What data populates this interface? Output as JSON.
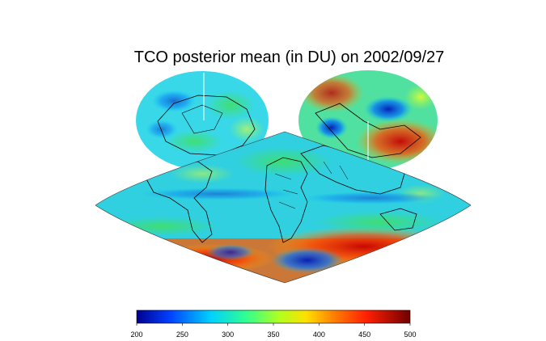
{
  "title": "TCO posterior mean (in DU) on 2002/09/27",
  "colorbar": {
    "min": 200,
    "max": 500,
    "ticks": [
      "200",
      "250",
      "300",
      "350",
      "400",
      "450",
      "500"
    ],
    "colors": [
      "#00008f",
      "#0050ff",
      "#00cfff",
      "#3cff9a",
      "#a8ff2a",
      "#ffe600",
      "#ff8a00",
      "#ff2a00",
      "#b00000",
      "#700000"
    ]
  },
  "map": {
    "projection": "interrupted sinusoidal with polar azimuthal insets",
    "panels": [
      "north-polar-view",
      "south-polar-view",
      "global-sinusoidal"
    ]
  }
}
